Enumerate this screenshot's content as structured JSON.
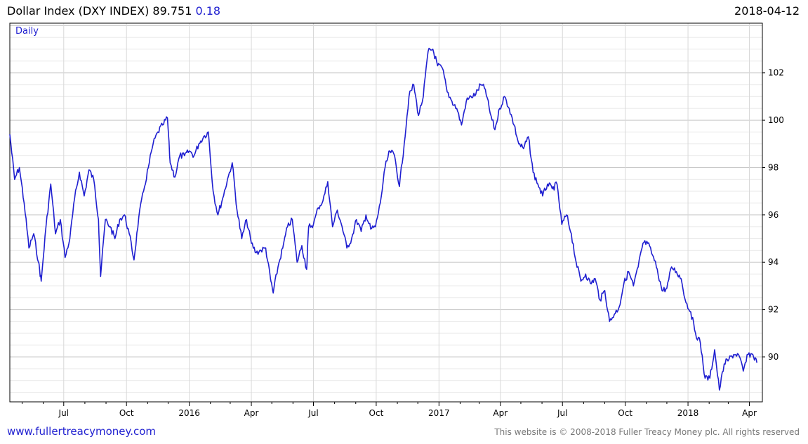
{
  "header": {
    "title": "Dollar Index (DXY INDEX)",
    "last_value": "89.751",
    "change": "0.18",
    "date": "2018-04-12"
  },
  "footer": {
    "website": "www.fullertreacymoney.com",
    "copyright": "This website is © 2008-2018 Fuller Treacy Money plc. All rights reserved"
  },
  "colors": {
    "series": "#1f1fd0",
    "grid": "#d8d8d8",
    "axis": "#000000"
  },
  "chart_data": {
    "type": "line",
    "frequency_label": "Daily",
    "x_tick_labels": [
      "Jul",
      "Oct",
      "2016",
      "Apr",
      "Jul",
      "Oct",
      "2017",
      "Apr",
      "Jul",
      "Oct",
      "2018",
      "Apr"
    ],
    "y_tick_labels": [
      90,
      92,
      94,
      96,
      98,
      100,
      102
    ],
    "ylim": [
      88.1,
      104.1
    ],
    "xlim": [
      "2015-04-13",
      "2018-04-20"
    ],
    "grid": true,
    "y_axis_side": "right",
    "series": [
      {
        "values": [
          [
            "2015-04-13",
            99.4
          ],
          [
            "2015-04-20",
            97.5
          ],
          [
            "2015-04-27",
            98.0
          ],
          [
            "2015-05-04",
            96.5
          ],
          [
            "2015-05-11",
            94.6
          ],
          [
            "2015-05-18",
            95.2
          ],
          [
            "2015-05-25",
            94.0
          ],
          [
            "2015-05-29",
            93.2
          ],
          [
            "2015-06-05",
            95.5
          ],
          [
            "2015-06-12",
            97.3
          ],
          [
            "2015-06-19",
            95.2
          ],
          [
            "2015-06-26",
            95.8
          ],
          [
            "2015-07-03",
            94.2
          ],
          [
            "2015-07-10",
            95.0
          ],
          [
            "2015-07-17",
            96.7
          ],
          [
            "2015-07-24",
            97.8
          ],
          [
            "2015-07-31",
            96.8
          ],
          [
            "2015-08-07",
            97.9
          ],
          [
            "2015-08-14",
            97.5
          ],
          [
            "2015-08-21",
            95.8
          ],
          [
            "2015-08-24",
            93.4
          ],
          [
            "2015-08-31",
            95.8
          ],
          [
            "2015-09-07",
            95.5
          ],
          [
            "2015-09-14",
            95.0
          ],
          [
            "2015-09-21",
            95.8
          ],
          [
            "2015-09-28",
            96.0
          ],
          [
            "2015-10-05",
            95.2
          ],
          [
            "2015-10-12",
            94.1
          ],
          [
            "2015-10-19",
            95.9
          ],
          [
            "2015-10-26",
            97.0
          ],
          [
            "2015-11-02",
            98.0
          ],
          [
            "2015-11-09",
            99.0
          ],
          [
            "2015-11-16",
            99.5
          ],
          [
            "2015-11-23",
            99.8
          ],
          [
            "2015-11-30",
            100.1
          ],
          [
            "2015-12-04",
            98.2
          ],
          [
            "2015-12-11",
            97.6
          ],
          [
            "2015-12-18",
            98.5
          ],
          [
            "2015-12-25",
            98.5
          ],
          [
            "2016-01-01",
            98.7
          ],
          [
            "2016-01-08",
            98.5
          ],
          [
            "2016-01-15",
            99.0
          ],
          [
            "2016-01-22",
            99.3
          ],
          [
            "2016-01-29",
            99.5
          ],
          [
            "2016-02-05",
            97.0
          ],
          [
            "2016-02-12",
            96.0
          ],
          [
            "2016-02-19",
            96.7
          ],
          [
            "2016-02-26",
            97.5
          ],
          [
            "2016-03-04",
            98.2
          ],
          [
            "2016-03-11",
            96.2
          ],
          [
            "2016-03-18",
            95.0
          ],
          [
            "2016-03-25",
            95.8
          ],
          [
            "2016-04-01",
            94.8
          ],
          [
            "2016-04-08",
            94.4
          ],
          [
            "2016-04-15",
            94.5
          ],
          [
            "2016-04-22",
            94.6
          ],
          [
            "2016-04-29",
            93.3
          ],
          [
            "2016-05-03",
            92.7
          ],
          [
            "2016-05-10",
            93.8
          ],
          [
            "2016-05-17",
            94.6
          ],
          [
            "2016-05-24",
            95.5
          ],
          [
            "2016-05-31",
            95.8
          ],
          [
            "2016-06-07",
            94.0
          ],
          [
            "2016-06-14",
            94.7
          ],
          [
            "2016-06-21",
            93.7
          ],
          [
            "2016-06-24",
            95.5
          ],
          [
            "2016-07-01",
            95.6
          ],
          [
            "2016-07-08",
            96.3
          ],
          [
            "2016-07-15",
            96.6
          ],
          [
            "2016-07-22",
            97.4
          ],
          [
            "2016-07-29",
            95.5
          ],
          [
            "2016-08-05",
            96.2
          ],
          [
            "2016-08-12",
            95.5
          ],
          [
            "2016-08-19",
            94.6
          ],
          [
            "2016-08-26",
            95.0
          ],
          [
            "2016-09-02",
            95.8
          ],
          [
            "2016-09-09",
            95.3
          ],
          [
            "2016-09-16",
            96.0
          ],
          [
            "2016-09-23",
            95.4
          ],
          [
            "2016-09-30",
            95.5
          ],
          [
            "2016-10-07",
            96.5
          ],
          [
            "2016-10-14",
            98.0
          ],
          [
            "2016-10-21",
            98.7
          ],
          [
            "2016-10-28",
            98.5
          ],
          [
            "2016-11-04",
            97.2
          ],
          [
            "2016-11-11",
            99.0
          ],
          [
            "2016-11-18",
            101.0
          ],
          [
            "2016-11-25",
            101.5
          ],
          [
            "2016-12-02",
            100.2
          ],
          [
            "2016-12-09",
            101.0
          ],
          [
            "2016-12-16",
            102.9
          ],
          [
            "2016-12-23",
            103.0
          ],
          [
            "2016-12-30",
            102.3
          ],
          [
            "2017-01-06",
            102.2
          ],
          [
            "2017-01-13",
            101.2
          ],
          [
            "2017-01-20",
            100.8
          ],
          [
            "2017-01-27",
            100.5
          ],
          [
            "2017-02-03",
            99.8
          ],
          [
            "2017-02-10",
            100.8
          ],
          [
            "2017-02-17",
            101.0
          ],
          [
            "2017-02-24",
            101.1
          ],
          [
            "2017-03-03",
            101.5
          ],
          [
            "2017-03-10",
            101.3
          ],
          [
            "2017-03-17",
            100.3
          ],
          [
            "2017-03-24",
            99.6
          ],
          [
            "2017-03-31",
            100.5
          ],
          [
            "2017-04-07",
            101.0
          ],
          [
            "2017-04-14",
            100.5
          ],
          [
            "2017-04-21",
            99.8
          ],
          [
            "2017-04-28",
            99.0
          ],
          [
            "2017-05-05",
            98.8
          ],
          [
            "2017-05-12",
            99.3
          ],
          [
            "2017-05-19",
            97.8
          ],
          [
            "2017-05-26",
            97.3
          ],
          [
            "2017-06-02",
            96.8
          ],
          [
            "2017-06-09",
            97.3
          ],
          [
            "2017-06-16",
            97.1
          ],
          [
            "2017-06-23",
            97.3
          ],
          [
            "2017-06-30",
            95.6
          ],
          [
            "2017-07-07",
            96.0
          ],
          [
            "2017-07-14",
            95.2
          ],
          [
            "2017-07-21",
            94.0
          ],
          [
            "2017-07-28",
            93.2
          ],
          [
            "2017-08-04",
            93.5
          ],
          [
            "2017-08-11",
            93.1
          ],
          [
            "2017-08-18",
            93.3
          ],
          [
            "2017-08-25",
            92.4
          ],
          [
            "2017-09-01",
            92.8
          ],
          [
            "2017-09-08",
            91.5
          ],
          [
            "2017-09-15",
            91.8
          ],
          [
            "2017-09-22",
            92.1
          ],
          [
            "2017-09-29",
            93.1
          ],
          [
            "2017-10-06",
            93.6
          ],
          [
            "2017-10-13",
            93.0
          ],
          [
            "2017-10-20",
            93.8
          ],
          [
            "2017-10-27",
            94.8
          ],
          [
            "2017-11-03",
            94.8
          ],
          [
            "2017-11-10",
            94.3
          ],
          [
            "2017-11-17",
            93.7
          ],
          [
            "2017-11-24",
            92.8
          ],
          [
            "2017-12-01",
            92.9
          ],
          [
            "2017-12-08",
            93.8
          ],
          [
            "2017-12-15",
            93.6
          ],
          [
            "2017-12-22",
            93.3
          ],
          [
            "2017-12-29",
            92.3
          ],
          [
            "2018-01-05",
            91.9
          ],
          [
            "2018-01-12",
            91.0
          ],
          [
            "2018-01-19",
            90.6
          ],
          [
            "2018-01-26",
            89.1
          ],
          [
            "2018-02-02",
            89.1
          ],
          [
            "2018-02-09",
            90.3
          ],
          [
            "2018-02-16",
            88.6
          ],
          [
            "2018-02-23",
            89.7
          ],
          [
            "2018-03-02",
            89.9
          ],
          [
            "2018-03-09",
            90.1
          ],
          [
            "2018-03-16",
            90.1
          ],
          [
            "2018-03-23",
            89.4
          ],
          [
            "2018-03-30",
            90.1
          ],
          [
            "2018-04-06",
            90.1
          ],
          [
            "2018-04-12",
            89.75
          ]
        ]
      }
    ]
  }
}
